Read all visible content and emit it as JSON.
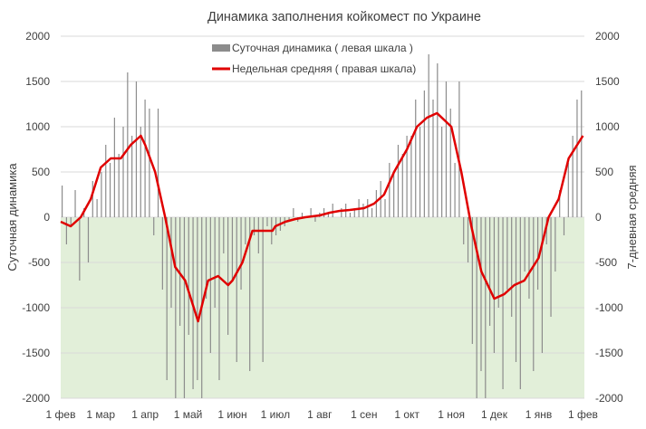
{
  "chart_data": {
    "type": "bar+line",
    "title": "Динамика заполнения койкомест по Украине",
    "ylabel_left": "Суточная динамика",
    "ylabel_right": "7-дневная средняя",
    "ylim": [
      -2000,
      2000
    ],
    "yticks": [
      2000,
      1500,
      1000,
      500,
      0,
      -500,
      -1000,
      -1500,
      -2000
    ],
    "xlim_days": [
      0,
      366
    ],
    "xticks": [
      {
        "day": 0,
        "label": "1 фев"
      },
      {
        "day": 28,
        "label": "1 мар"
      },
      {
        "day": 59,
        "label": "1 апр"
      },
      {
        "day": 89,
        "label": "1 май"
      },
      {
        "day": 120,
        "label": "1 июн"
      },
      {
        "day": 150,
        "label": "1 июл"
      },
      {
        "day": 181,
        "label": "1 авг"
      },
      {
        "day": 212,
        "label": "1 сен"
      },
      {
        "day": 242,
        "label": "1 окт"
      },
      {
        "day": 273,
        "label": "1 ноя"
      },
      {
        "day": 303,
        "label": "1 дек"
      },
      {
        "day": 334,
        "label": "1 янв"
      },
      {
        "day": 365,
        "label": "1 фев"
      }
    ],
    "legend": {
      "position": "top-center",
      "entries": [
        "Суточная динамика ( левая шкала )",
        "Недельная средняя ( правая шкала)"
      ]
    },
    "colors": {
      "bars": "#8c8c8c",
      "line": "#e00000",
      "negative_fill": "#e2efd9",
      "grid": "#d9d9d9"
    },
    "series": [
      {
        "name": "Суточная динамика ( левая шкала )",
        "type": "bar",
        "day_step": 3.05,
        "values": [
          350,
          -300,
          -100,
          300,
          -700,
          100,
          -500,
          400,
          200,
          500,
          800,
          600,
          1100,
          700,
          1000,
          1600,
          900,
          1500,
          1000,
          1300,
          1200,
          -200,
          1200,
          -800,
          -1800,
          -1000,
          -2000,
          -1200,
          -2000,
          -1300,
          -1900,
          -1800,
          -2000,
          -900,
          -1500,
          -1000,
          -1800,
          -400,
          -1300,
          -700,
          -1600,
          -800,
          -300,
          -1700,
          -200,
          -400,
          -1600,
          -100,
          -300,
          -200,
          -150,
          -100,
          -50,
          100,
          -50,
          50,
          0,
          100,
          -50,
          50,
          100,
          50,
          150,
          0,
          100,
          150,
          50,
          100,
          200,
          150,
          200,
          100,
          300,
          400,
          200,
          600,
          500,
          800,
          700,
          900,
          900,
          1300,
          1000,
          1400,
          1800,
          1300,
          1700,
          1000,
          1500,
          1200,
          600,
          1500,
          -300,
          -500,
          -1400,
          -2000,
          -1700,
          -2000,
          -1200,
          -1500,
          -1000,
          -1900,
          -800,
          -1100,
          -1600,
          -1900,
          -600,
          -900,
          -1700,
          -800,
          -1500,
          -300,
          -1100,
          -600,
          300,
          -200,
          600,
          900,
          1300,
          1400
        ]
      },
      {
        "name": "Недельная средняя ( правая шкала)",
        "type": "line",
        "points": [
          [
            0,
            -50
          ],
          [
            7,
            -100
          ],
          [
            14,
            0
          ],
          [
            21,
            200
          ],
          [
            28,
            550
          ],
          [
            35,
            650
          ],
          [
            42,
            650
          ],
          [
            49,
            800
          ],
          [
            56,
            900
          ],
          [
            59,
            800
          ],
          [
            66,
            500
          ],
          [
            73,
            0
          ],
          [
            80,
            -550
          ],
          [
            87,
            -700
          ],
          [
            89,
            -800
          ],
          [
            96,
            -1150
          ],
          [
            103,
            -700
          ],
          [
            110,
            -650
          ],
          [
            117,
            -750
          ],
          [
            120,
            -700
          ],
          [
            127,
            -500
          ],
          [
            134,
            -150
          ],
          [
            141,
            -150
          ],
          [
            148,
            -150
          ],
          [
            150,
            -100
          ],
          [
            157,
            -50
          ],
          [
            164,
            -20
          ],
          [
            171,
            0
          ],
          [
            181,
            20
          ],
          [
            188,
            50
          ],
          [
            195,
            70
          ],
          [
            202,
            80
          ],
          [
            212,
            100
          ],
          [
            219,
            150
          ],
          [
            226,
            250
          ],
          [
            233,
            500
          ],
          [
            242,
            750
          ],
          [
            249,
            1000
          ],
          [
            256,
            1100
          ],
          [
            263,
            1150
          ],
          [
            273,
            1000
          ],
          [
            280,
            500
          ],
          [
            287,
            -100
          ],
          [
            294,
            -600
          ],
          [
            303,
            -900
          ],
          [
            310,
            -850
          ],
          [
            317,
            -750
          ],
          [
            324,
            -700
          ],
          [
            334,
            -450
          ],
          [
            341,
            0
          ],
          [
            348,
            200
          ],
          [
            355,
            650
          ],
          [
            365,
            900
          ]
        ]
      }
    ]
  }
}
